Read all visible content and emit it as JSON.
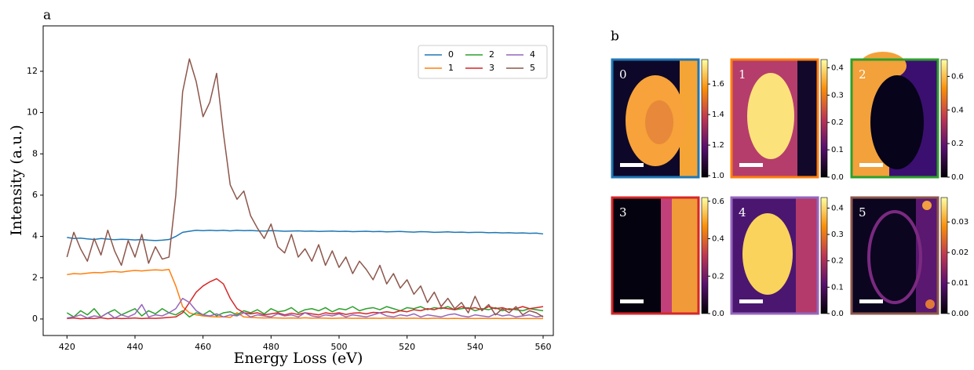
{
  "figure_labels": [
    "a",
    "b"
  ],
  "chart_data": [
    {
      "type": "line",
      "x_label": "Energy Loss (eV)",
      "y_label": "Intensity (a.u.)",
      "x": [
        420,
        422,
        424,
        426,
        428,
        430,
        432,
        434,
        436,
        438,
        440,
        442,
        444,
        446,
        448,
        450,
        452,
        454,
        456,
        458,
        460,
        462,
        464,
        466,
        468,
        470,
        472,
        474,
        476,
        478,
        480,
        482,
        484,
        486,
        488,
        490,
        492,
        494,
        496,
        498,
        500,
        502,
        504,
        506,
        508,
        510,
        512,
        514,
        516,
        518,
        520,
        522,
        524,
        526,
        528,
        530,
        532,
        534,
        536,
        538,
        540,
        542,
        544,
        546,
        548,
        550,
        552,
        554,
        556,
        558,
        560
      ],
      "xlim": [
        413,
        563
      ],
      "xticks": [
        420,
        440,
        460,
        480,
        500,
        520,
        540,
        560
      ],
      "ylim": [
        -0.8,
        14.2
      ],
      "yticks": [
        0,
        2,
        4,
        6,
        8,
        10,
        12
      ],
      "legend": "upper right",
      "series": [
        {
          "name": "0",
          "color": "#1f77b4",
          "values": [
            3.95,
            3.9,
            3.92,
            3.88,
            3.85,
            3.9,
            3.87,
            3.84,
            3.86,
            3.85,
            3.83,
            3.85,
            3.82,
            3.8,
            3.82,
            3.85,
            4.0,
            4.2,
            4.25,
            4.3,
            4.28,
            4.3,
            4.28,
            4.3,
            4.27,
            4.3,
            4.28,
            4.29,
            4.27,
            4.26,
            4.28,
            4.27,
            4.25,
            4.26,
            4.27,
            4.25,
            4.26,
            4.24,
            4.25,
            4.26,
            4.24,
            4.25,
            4.23,
            4.24,
            4.25,
            4.23,
            4.24,
            4.22,
            4.23,
            4.24,
            4.22,
            4.21,
            4.23,
            4.22,
            4.2,
            4.21,
            4.22,
            4.2,
            4.21,
            4.19,
            4.2,
            4.2,
            4.18,
            4.19,
            4.17,
            4.18,
            4.16,
            4.17,
            4.15,
            4.16,
            4.12
          ]
        },
        {
          "name": "1",
          "color": "#ff7f0e",
          "values": [
            2.15,
            2.2,
            2.18,
            2.22,
            2.25,
            2.24,
            2.28,
            2.3,
            2.27,
            2.32,
            2.35,
            2.33,
            2.36,
            2.38,
            2.36,
            2.4,
            1.6,
            0.6,
            0.3,
            0.2,
            0.15,
            0.12,
            0.1,
            0.1,
            0.08,
            0.3,
            0.1,
            0.08,
            0.06,
            0.05,
            0.06,
            0.05,
            0.04,
            0.05,
            0.04,
            0.06,
            0.04,
            0.05,
            0.04,
            0.03,
            0.04,
            0.05,
            0.03,
            0.04,
            0.03,
            0.04,
            0.03,
            0.05,
            0.03,
            0.04,
            0.03,
            0.04,
            0.03,
            0.02,
            0.04,
            0.03,
            0.02,
            0.03,
            0.02,
            0.03,
            0.02,
            0.03,
            0.02,
            0.03,
            0.02,
            0.02,
            0.03,
            0.02,
            0.02,
            0.02,
            0.02
          ]
        },
        {
          "name": "2",
          "color": "#2ca02c",
          "values": [
            0.3,
            0.1,
            0.4,
            0.2,
            0.5,
            0.1,
            0.3,
            0.45,
            0.2,
            0.35,
            0.5,
            0.15,
            0.4,
            0.25,
            0.5,
            0.3,
            0.2,
            0.4,
            0.1,
            0.3,
            0.2,
            0.4,
            0.15,
            0.3,
            0.35,
            0.2,
            0.4,
            0.3,
            0.45,
            0.25,
            0.5,
            0.35,
            0.4,
            0.55,
            0.3,
            0.45,
            0.5,
            0.4,
            0.55,
            0.35,
            0.5,
            0.45,
            0.6,
            0.4,
            0.5,
            0.55,
            0.45,
            0.6,
            0.5,
            0.4,
            0.55,
            0.5,
            0.6,
            0.45,
            0.55,
            0.5,
            0.6,
            0.45,
            0.5,
            0.55,
            0.4,
            0.5,
            0.45,
            0.55,
            0.4,
            0.5,
            0.45,
            0.4,
            0.5,
            0.45,
            0.4
          ]
        },
        {
          "name": "3",
          "color": "#d62728",
          "values": [
            0.02,
            0.05,
            0.01,
            0.03,
            0.02,
            0.06,
            0.01,
            0.04,
            0.02,
            0.03,
            0.05,
            0.02,
            0.04,
            0.03,
            0.05,
            0.08,
            0.1,
            0.3,
            0.8,
            1.3,
            1.6,
            1.8,
            1.95,
            1.7,
            1.0,
            0.5,
            0.3,
            0.25,
            0.3,
            0.2,
            0.25,
            0.3,
            0.2,
            0.28,
            0.22,
            0.3,
            0.25,
            0.2,
            0.3,
            0.25,
            0.3,
            0.22,
            0.28,
            0.3,
            0.25,
            0.32,
            0.3,
            0.35,
            0.3,
            0.4,
            0.35,
            0.45,
            0.4,
            0.5,
            0.45,
            0.55,
            0.5,
            0.45,
            0.6,
            0.5,
            0.55,
            0.45,
            0.6,
            0.5,
            0.55,
            0.45,
            0.5,
            0.6,
            0.5,
            0.55,
            0.6
          ]
        },
        {
          "name": "4",
          "color": "#9467bd",
          "values": [
            0.05,
            0.1,
            0.2,
            0.05,
            0.15,
            0.1,
            0.3,
            0.05,
            0.2,
            0.1,
            0.25,
            0.7,
            0.1,
            0.2,
            0.15,
            0.3,
            0.5,
            1.0,
            0.8,
            0.4,
            0.2,
            0.15,
            0.25,
            0.1,
            0.2,
            0.15,
            0.3,
            0.1,
            0.2,
            0.15,
            0.1,
            0.25,
            0.15,
            0.2,
            0.1,
            0.3,
            0.15,
            0.1,
            0.2,
            0.15,
            0.25,
            0.1,
            0.2,
            0.15,
            0.1,
            0.2,
            0.3,
            0.15,
            0.1,
            0.2,
            0.15,
            0.25,
            0.1,
            0.2,
            0.15,
            0.1,
            0.2,
            0.25,
            0.15,
            0.1,
            0.2,
            0.15,
            0.1,
            0.25,
            0.15,
            0.2,
            0.1,
            0.15,
            0.2,
            0.1,
            0.15
          ]
        },
        {
          "name": "5",
          "color": "#8c564b",
          "values": [
            3.0,
            4.2,
            3.4,
            2.8,
            3.9,
            3.1,
            4.3,
            3.3,
            2.6,
            3.8,
            3.0,
            4.1,
            2.7,
            3.5,
            2.9,
            3.0,
            6.0,
            11.0,
            12.6,
            11.5,
            9.8,
            10.5,
            11.9,
            9.0,
            6.5,
            5.8,
            6.2,
            5.0,
            4.4,
            3.9,
            4.6,
            3.5,
            3.2,
            4.1,
            3.0,
            3.4,
            2.8,
            3.6,
            2.6,
            3.3,
            2.5,
            3.0,
            2.2,
            2.8,
            2.4,
            1.9,
            2.6,
            1.7,
            2.2,
            1.5,
            1.9,
            1.2,
            1.6,
            0.8,
            1.3,
            0.6,
            1.0,
            0.5,
            0.8,
            0.3,
            1.1,
            0.4,
            0.7,
            0.2,
            0.5,
            0.3,
            0.6,
            0.2,
            0.4,
            0.3,
            0.1
          ]
        }
      ]
    },
    {
      "type": "heatmap",
      "label": "0",
      "frame_color": "#1f77b4",
      "clim": [
        0.99,
        1.76
      ],
      "cticks": [
        {
          "value": 1,
          "label": "1.0"
        },
        1.2,
        1.4,
        1.6
      ]
    },
    {
      "type": "heatmap",
      "label": "1",
      "frame_color": "#ff7f0e",
      "clim": [
        0,
        0.43
      ],
      "cticks": [
        {
          "value": 0,
          "label": "0.0"
        },
        0.1,
        0.2,
        0.3,
        0.4
      ]
    },
    {
      "type": "heatmap",
      "label": "2",
      "frame_color": "#2ca02c",
      "clim": [
        0,
        0.7
      ],
      "cticks": [
        {
          "value": 0,
          "label": "0.0"
        },
        0.2,
        0.4,
        0.6
      ]
    },
    {
      "type": "heatmap",
      "label": "3",
      "frame_color": "#d62728",
      "clim": [
        0,
        0.62
      ],
      "cticks": [
        {
          "value": 0,
          "label": "0.0"
        },
        0.2,
        0.4,
        0.6
      ]
    },
    {
      "type": "heatmap",
      "label": "4",
      "frame_color": "#9467bd",
      "clim": [
        0,
        0.44
      ],
      "cticks": [
        {
          "value": 0,
          "label": "0.0"
        },
        0.1,
        0.2,
        0.3,
        0.4
      ]
    },
    {
      "type": "heatmap",
      "label": "5",
      "frame_color": "#8c564b",
      "clim": [
        0,
        0.038
      ],
      "cticks": [
        {
          "value": 0,
          "label": "0.00"
        },
        0.01,
        0.02,
        0.03
      ]
    }
  ]
}
